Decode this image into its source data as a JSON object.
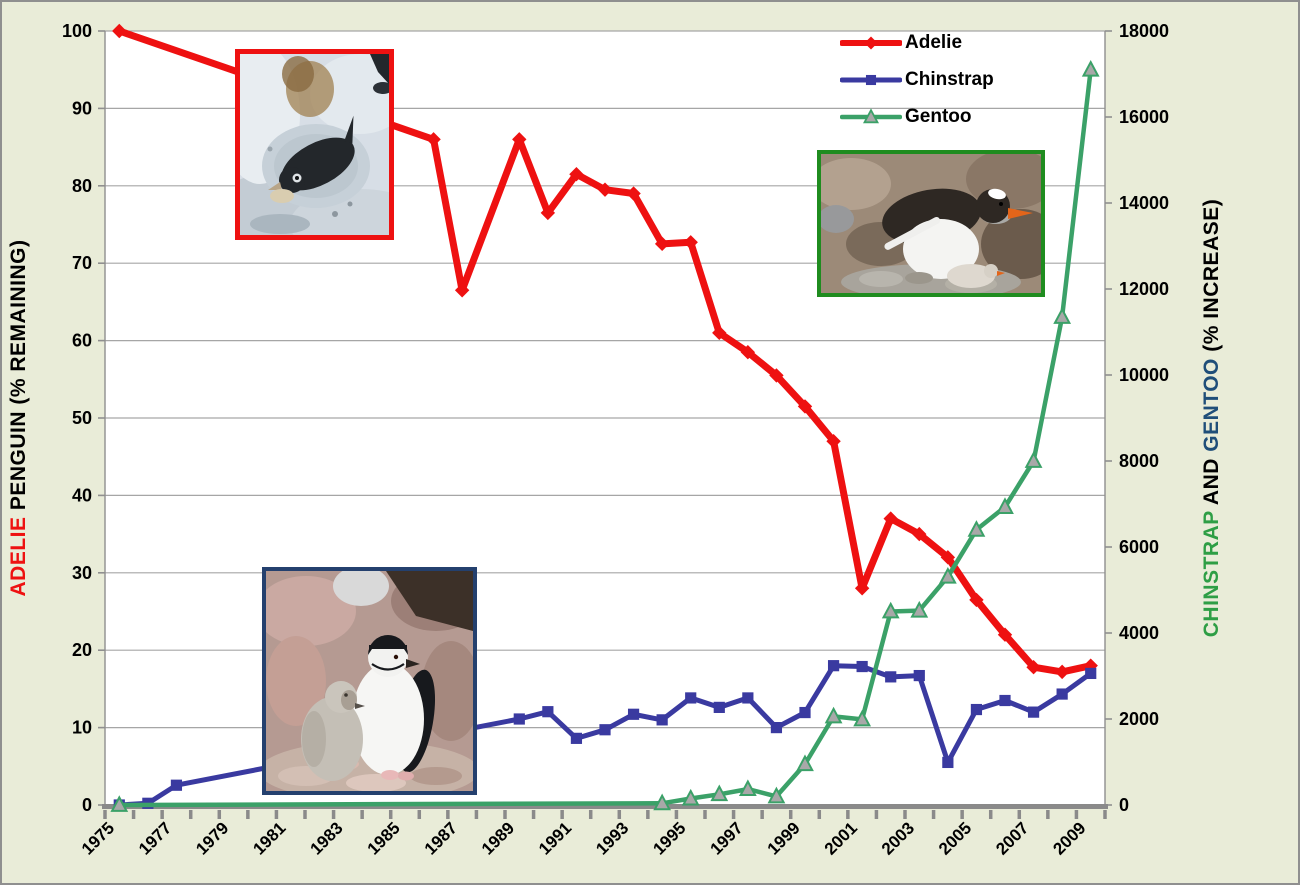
{
  "chart_data": {
    "type": "line",
    "title": "",
    "x_first_year": 1975,
    "x_last_year": 2009,
    "x_tick_labels": [
      "1975",
      "1977",
      "1979",
      "1981",
      "1983",
      "1985",
      "1987",
      "1989",
      "1991",
      "1993",
      "1995",
      "1997",
      "1999",
      "2001",
      "2003",
      "2005",
      "2007",
      "2009"
    ],
    "left_axis": {
      "min": 0,
      "max": 100,
      "step": 10,
      "tick_labels": [
        "0",
        "10",
        "20",
        "30",
        "40",
        "50",
        "60",
        "70",
        "80",
        "90",
        "100"
      ],
      "label_parts": [
        {
          "text": "ADELIE",
          "color": "#ee1111"
        },
        {
          "text": " PENGUIN (% REMAINING)",
          "color": "#000000"
        }
      ]
    },
    "right_axis": {
      "min": 0,
      "max": 18000,
      "step": 2000,
      "tick_labels": [
        "0",
        "2000",
        "4000",
        "6000",
        "8000",
        "10000",
        "12000",
        "14000",
        "16000",
        "18000"
      ],
      "label_parts": [
        {
          "text": "CHINSTRAP",
          "color": "#2e9e45"
        },
        {
          "text": " AND ",
          "color": "#000000"
        },
        {
          "text": "GENTOO",
          "color": "#1f4e79"
        },
        {
          "text": " (% INCREASE)",
          "color": "#000000"
        }
      ]
    },
    "legend": {
      "position": "top-right"
    },
    "series": [
      {
        "name": "Adelie",
        "axis": "left",
        "marker": "diamond",
        "color": "#ee1111",
        "marker_fill": "#ee1111",
        "line_width": 7,
        "points": [
          [
            1975,
            100
          ],
          [
            1986,
            86
          ],
          [
            1987,
            66.5
          ],
          [
            1989,
            86
          ],
          [
            1990,
            76.5
          ],
          [
            1991,
            81.5
          ],
          [
            1992,
            79.5
          ],
          [
            1993,
            79
          ],
          [
            1994,
            72.5
          ],
          [
            1995,
            72.7
          ],
          [
            1996,
            61
          ],
          [
            1997,
            58.5
          ],
          [
            1998,
            55.5
          ],
          [
            1999,
            51.5
          ],
          [
            2000,
            47
          ],
          [
            2001,
            28
          ],
          [
            2002,
            37
          ],
          [
            2003,
            35
          ],
          [
            2004,
            32
          ],
          [
            2005,
            26.5
          ],
          [
            2006,
            22
          ],
          [
            2007,
            17.8
          ],
          [
            2008,
            17.2
          ],
          [
            2009,
            18
          ]
        ]
      },
      {
        "name": "Chinstrap",
        "axis": "right",
        "marker": "square",
        "color": "#3a3aa0",
        "marker_fill": "#3a3aa0",
        "line_width": 5,
        "points": [
          [
            1975,
            0
          ],
          [
            1976,
            40
          ],
          [
            1977,
            460
          ],
          [
            1989,
            2000
          ],
          [
            1990,
            2170
          ],
          [
            1991,
            1550
          ],
          [
            1992,
            1750
          ],
          [
            1993,
            2110
          ],
          [
            1994,
            1980
          ],
          [
            1995,
            2490
          ],
          [
            1996,
            2270
          ],
          [
            1997,
            2490
          ],
          [
            1998,
            1800
          ],
          [
            1999,
            2150
          ],
          [
            2000,
            3240
          ],
          [
            2001,
            3220
          ],
          [
            2002,
            2980
          ],
          [
            2003,
            3010
          ],
          [
            2004,
            990
          ],
          [
            2005,
            2220
          ],
          [
            2006,
            2430
          ],
          [
            2007,
            2160
          ],
          [
            2008,
            2580
          ],
          [
            2009,
            3060
          ]
        ]
      },
      {
        "name": "Gentoo",
        "axis": "right",
        "marker": "triangle",
        "color": "#3ba168",
        "marker_fill": "#a8a8a8",
        "line_width": 4.5,
        "points": [
          [
            1975,
            0
          ],
          [
            1994,
            40
          ],
          [
            1995,
            150
          ],
          [
            1996,
            250
          ],
          [
            1997,
            370
          ],
          [
            1998,
            200
          ],
          [
            1999,
            950
          ],
          [
            2000,
            2060
          ],
          [
            2001,
            1990
          ],
          [
            2002,
            4500
          ],
          [
            2003,
            4520
          ],
          [
            2004,
            5310
          ],
          [
            2005,
            6400
          ],
          [
            2006,
            6930
          ],
          [
            2007,
            8000
          ],
          [
            2008,
            11350
          ],
          [
            2009,
            17100
          ]
        ]
      }
    ]
  },
  "photos": [
    {
      "id": "adelie-photo",
      "depicts": "Adelie penguin lying on a snowy nest",
      "border_color": "#ee1111"
    },
    {
      "id": "gentoo-photo",
      "depicts": "Gentoo penguin with chick on rocky nest",
      "border_color": "#1f8c1f"
    },
    {
      "id": "chinstrap-photo",
      "depicts": "Chinstrap penguin adult with grey chick on pebbles",
      "border_color": "#24406e"
    }
  ],
  "colors": {
    "page_background": "#e9ecd8",
    "plot_background": "#ffffff",
    "gridline": "#a6a6a6",
    "axis_line": "#8a8a8a",
    "tick_text": "#000000"
  }
}
